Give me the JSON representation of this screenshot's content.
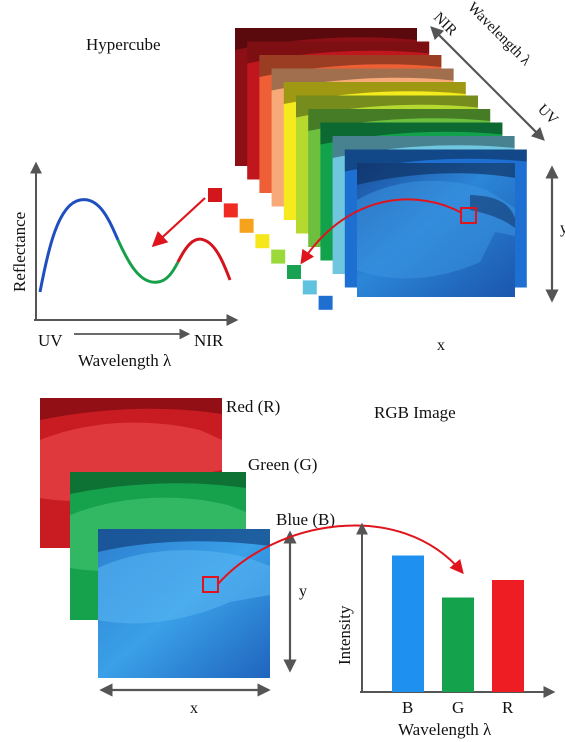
{
  "hypercube": {
    "title": "Hypercube",
    "axis_top": {
      "near": "NIR",
      "middle": "Wavelength λ",
      "far": "UV"
    },
    "x_label": "x",
    "y_label": "y",
    "layer_colors": [
      "#8b0f15",
      "#c0161d",
      "#ef5f36",
      "#f7a978",
      "#f4ea1e",
      "#b6d92f",
      "#6dbf3d",
      "#12a24c",
      "#6fc6de",
      "#1d6fd2"
    ]
  },
  "spectrum_plot": {
    "ylabel": "Reflectance",
    "x_start": "UV",
    "x_end": "NIR",
    "xlabel": "Wavelength λ",
    "curve_colors": {
      "uv": "#1f4fbf",
      "mid": "#16a04a",
      "nir": "#d4141d"
    }
  },
  "pixel_squares": {
    "colors": [
      "#d3161c",
      "#ee2c24",
      "#f5a21c",
      "#f6e61c",
      "#9ad93a",
      "#1aa253",
      "#5fc3df",
      "#1e6fd0"
    ]
  },
  "rgb_image": {
    "title": "RGB Image",
    "channels": [
      "Red (R)",
      "Green (G)",
      "Blue (B)"
    ],
    "x_label": "x",
    "y_label": "y"
  },
  "chart_data": {
    "type": "bar",
    "categories": [
      "B",
      "G",
      "R"
    ],
    "values": [
      0.78,
      0.54,
      0.64
    ],
    "colors": [
      "#1e90f0",
      "#14a24c",
      "#ee1c23"
    ],
    "title": "",
    "xlabel": "Wavelength λ",
    "ylabel": "Intensity",
    "ylim": [
      0,
      1
    ]
  }
}
